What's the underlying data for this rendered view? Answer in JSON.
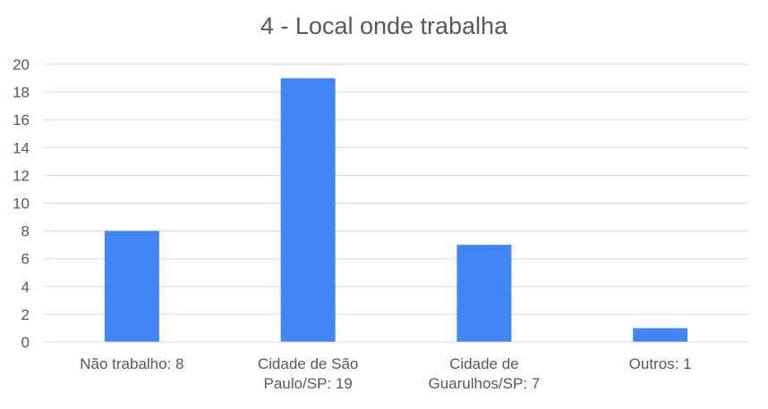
{
  "chart_data": {
    "type": "bar",
    "title": "4 - Local onde trabalha",
    "xlabel": "",
    "ylabel": "",
    "categories": [
      [
        "Não trabalho: 8"
      ],
      [
        "Cidade de São",
        "Paulo/SP: 19"
      ],
      [
        "Cidade de",
        "Guarulhos/SP: 7"
      ],
      [
        "Outros: 1"
      ]
    ],
    "values": [
      8,
      19,
      7,
      1
    ],
    "ylim": [
      0,
      20
    ],
    "yticks": [
      "0",
      "2",
      "4",
      "6",
      "8",
      "10",
      "12",
      "14",
      "16",
      "18",
      "20"
    ],
    "grid": true,
    "legend": "none",
    "colors": {
      "bar": "#4285F4",
      "grid": "#D9D9D9",
      "text": "#595959"
    }
  }
}
